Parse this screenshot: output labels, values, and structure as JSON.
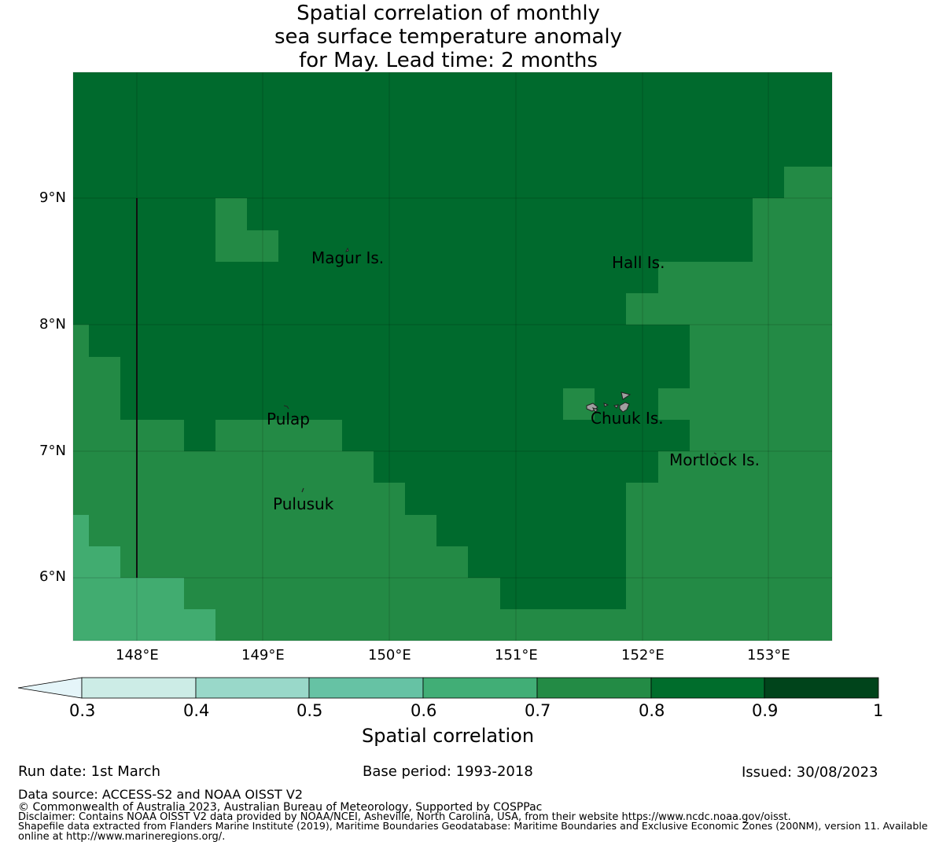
{
  "title": {
    "line1": "Spatial correlation of monthly",
    "line2": "sea surface temperature anomaly",
    "line3": "for May. Lead time: 2 months"
  },
  "map": {
    "lat_labels": [
      "9°N",
      "8°N",
      "7°N",
      "6°N"
    ],
    "lon_labels": [
      "148°E",
      "149°E",
      "150°E",
      "151°E",
      "152°E",
      "153°E"
    ],
    "places": {
      "magur": "Magur Is.",
      "hall": "Hall Is.",
      "pulap": "Pulap",
      "chuuk": "Chuuk Is.",
      "mortlock": "Mortlock Is.",
      "pulusuk": "Pulusuk"
    },
    "colors": {
      "c80_90": "#006a2d",
      "c70_80": "#238a45",
      "c60_70": "#41ac70",
      "chuuk_land": "#a0a0a0"
    }
  },
  "colorbar": {
    "ticks": [
      "0.3",
      "0.4",
      "0.5",
      "0.6",
      "0.7",
      "0.8",
      "0.9",
      "1"
    ],
    "label": "Spatial correlation",
    "colors": [
      "#e5f5f9",
      "#ccece6",
      "#99d8c9",
      "#66c2a4",
      "#41ae76",
      "#238b45",
      "#006d2c",
      "#00441b"
    ]
  },
  "meta": {
    "run_date": "Run date: 1st March",
    "base_period": "Base period: 1993-2018",
    "issued": "Issued: 30/08/2023"
  },
  "footer": {
    "data_source": "Data source: ACCESS-S2 and NOAA OISST V2",
    "copyright": "© Commonwealth of Australia 2023, Australian Bureau of Meteorology, Supported by COSPPac",
    "disclaimer": "Disclaimer: Contains NOAA OISST V2 data provided by NOAA/NCEI, Asheville, North Carolina, USA, from their website https://www.ncdc.noaa.gov/oisst.",
    "shapefile_1": "Shapefile data extracted from Flanders Marine Institute (2019), Maritime Boundaries Geodatabase: Maritime Boundaries and Exclusive Economic Zones (200NM), version 11. Available",
    "shapefile_2": "online at http://www.marineregions.org/."
  }
}
